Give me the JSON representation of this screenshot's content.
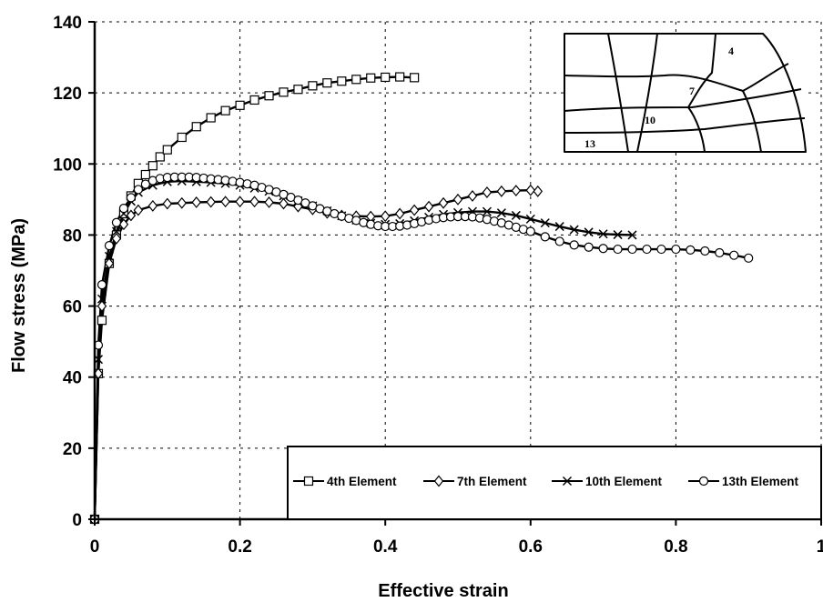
{
  "chart_data": {
    "type": "line",
    "title": "",
    "xlabel": "Effective strain",
    "ylabel": "Flow stress (MPa)",
    "xlim": [
      0,
      1
    ],
    "ylim": [
      0,
      140
    ],
    "x_ticks": [
      0,
      0.2,
      0.4,
      0.6,
      0.8,
      1
    ],
    "x_tick_labels": [
      "0",
      "0.2",
      "0.4",
      "0.6",
      "0.8",
      "1"
    ],
    "y_ticks": [
      0,
      20,
      40,
      60,
      80,
      100,
      120,
      140
    ],
    "y_tick_labels": [
      "0",
      "20",
      "40",
      "60",
      "80",
      "100",
      "120",
      "140"
    ],
    "grid": "dashed",
    "legend_position": "bottom-right",
    "series": [
      {
        "name": "4th Element",
        "marker": "square",
        "x": [
          0,
          0.005,
          0.01,
          0.02,
          0.03,
          0.04,
          0.05,
          0.06,
          0.07,
          0.08,
          0.09,
          0.1,
          0.12,
          0.14,
          0.16,
          0.18,
          0.2,
          0.22,
          0.24,
          0.26,
          0.28,
          0.3,
          0.32,
          0.34,
          0.36,
          0.38,
          0.4,
          0.42,
          0.44
        ],
        "y": [
          0,
          41,
          56,
          72,
          80,
          86,
          91,
          94.5,
          97,
          99.5,
          102,
          104,
          107.5,
          110.5,
          113,
          115,
          116.5,
          118,
          119.2,
          120.2,
          121,
          122,
          122.8,
          123.3,
          123.8,
          124.2,
          124.4,
          124.5,
          124.3
        ]
      },
      {
        "name": "7th Element",
        "marker": "diamond",
        "x": [
          0,
          0.005,
          0.01,
          0.02,
          0.03,
          0.04,
          0.05,
          0.06,
          0.08,
          0.1,
          0.12,
          0.14,
          0.16,
          0.18,
          0.2,
          0.22,
          0.24,
          0.26,
          0.28,
          0.3,
          0.32,
          0.34,
          0.36,
          0.38,
          0.4,
          0.42,
          0.44,
          0.46,
          0.48,
          0.5,
          0.52,
          0.54,
          0.56,
          0.58,
          0.6,
          0.61
        ],
        "y": [
          0,
          41,
          60,
          72,
          79,
          83,
          85.5,
          87,
          88.2,
          88.8,
          89,
          89.2,
          89.3,
          89.4,
          89.4,
          89.4,
          89.2,
          88.8,
          88,
          87.2,
          86.2,
          85.5,
          85.3,
          85.2,
          85.3,
          86,
          87,
          88,
          89,
          90,
          91,
          92,
          92.3,
          92.5,
          92.6,
          92.3
        ]
      },
      {
        "name": "10th Element",
        "marker": "x",
        "x": [
          0,
          0.005,
          0.01,
          0.02,
          0.03,
          0.04,
          0.05,
          0.06,
          0.08,
          0.1,
          0.12,
          0.14,
          0.16,
          0.18,
          0.2,
          0.22,
          0.24,
          0.26,
          0.28,
          0.3,
          0.32,
          0.34,
          0.36,
          0.38,
          0.4,
          0.42,
          0.44,
          0.46,
          0.48,
          0.5,
          0.52,
          0.54,
          0.56,
          0.58,
          0.6,
          0.62,
          0.64,
          0.66,
          0.68,
          0.7,
          0.72,
          0.74
        ],
        "y": [
          0,
          45,
          62,
          74,
          81,
          86,
          89.5,
          92,
          94,
          95,
          95.2,
          95,
          94.8,
          94.5,
          94,
          93.2,
          92.3,
          91,
          89.6,
          88.2,
          86.8,
          85.4,
          84.2,
          83.3,
          83,
          83.2,
          84,
          85,
          85.8,
          86.3,
          86.6,
          86.6,
          86.2,
          85.5,
          84.5,
          83.4,
          82.4,
          81.5,
          80.8,
          80.3,
          80.1,
          80
        ]
      },
      {
        "name": "13th Element",
        "marker": "circle",
        "x": [
          0,
          0.005,
          0.01,
          0.02,
          0.03,
          0.04,
          0.05,
          0.06,
          0.07,
          0.08,
          0.09,
          0.1,
          0.11,
          0.12,
          0.13,
          0.14,
          0.15,
          0.16,
          0.17,
          0.18,
          0.19,
          0.2,
          0.21,
          0.22,
          0.23,
          0.24,
          0.25,
          0.26,
          0.27,
          0.28,
          0.29,
          0.3,
          0.31,
          0.32,
          0.33,
          0.34,
          0.35,
          0.36,
          0.37,
          0.38,
          0.39,
          0.4,
          0.41,
          0.42,
          0.43,
          0.44,
          0.45,
          0.46,
          0.47,
          0.48,
          0.49,
          0.5,
          0.51,
          0.52,
          0.53,
          0.54,
          0.55,
          0.56,
          0.57,
          0.58,
          0.59,
          0.6,
          0.62,
          0.64,
          0.66,
          0.68,
          0.7,
          0.72,
          0.74,
          0.76,
          0.78,
          0.8,
          0.82,
          0.84,
          0.86,
          0.88,
          0.9
        ],
        "y": [
          0,
          49,
          66,
          77,
          83.5,
          87.5,
          90.5,
          92.8,
          94.3,
          95.3,
          95.9,
          96.2,
          96.3,
          96.3,
          96.3,
          96.2,
          96,
          95.8,
          95.6,
          95.4,
          95.1,
          94.8,
          94.4,
          94,
          93.4,
          92.8,
          92.1,
          91.4,
          90.6,
          89.8,
          89,
          88.2,
          87.4,
          86.7,
          86,
          85.3,
          84.7,
          84.1,
          83.5,
          83,
          82.6,
          82.4,
          82.4,
          82.5,
          82.8,
          83.2,
          83.7,
          84.2,
          84.6,
          84.9,
          85.1,
          85.2,
          85.2,
          85.1,
          84.8,
          84.4,
          83.9,
          83.4,
          82.8,
          82.2,
          81.6,
          81,
          79.5,
          78.2,
          77.2,
          76.6,
          76.2,
          76,
          76,
          76,
          76,
          76,
          75.8,
          75.5,
          75,
          74.3,
          73.5
        ]
      }
    ]
  },
  "inset": {
    "labels": [
      "4",
      "7",
      "10",
      "13"
    ]
  }
}
